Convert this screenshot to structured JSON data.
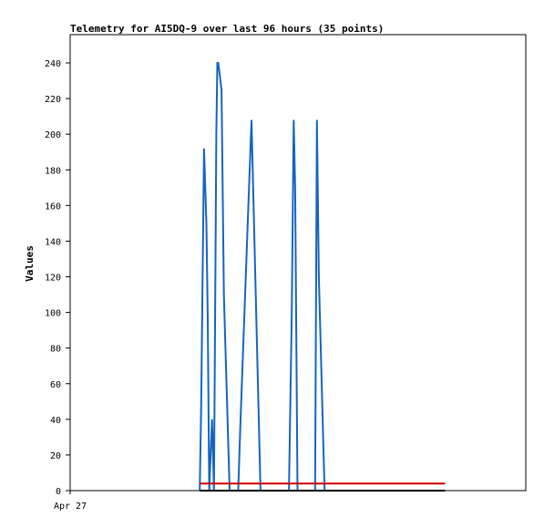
{
  "chart_data": {
    "type": "line",
    "title": "Telemetry for AI5DQ-9 over last 96 hours (35 points)",
    "xlabel": "",
    "ylabel": "Values",
    "x_tick_labels": [
      "Apr 27"
    ],
    "y_ticks": [
      0,
      20,
      40,
      60,
      80,
      100,
      120,
      140,
      160,
      180,
      200,
      220,
      240
    ],
    "ylim": [
      0,
      256
    ],
    "xlim": [
      0,
      96
    ],
    "grid": false,
    "legend": "none",
    "series": [
      {
        "color": "#1565c0",
        "step": true,
        "x": [
          27.3,
          27.6,
          28.2,
          28.7,
          29.0,
          29.3,
          29.9,
          30.3,
          30.8,
          31.0,
          31.2,
          31.9,
          32.4,
          33.6,
          34.0,
          35.0,
          35.4,
          35.9,
          38.2,
          40.1,
          41.0,
          41.5,
          43.9,
          46.1,
          46.7,
          47.1,
          47.4,
          47.9,
          49.2,
          51.2,
          51.6,
          52.0,
          52.4,
          53.6,
          54.1
        ],
        "y": [
          0,
          48,
          192,
          150,
          96,
          0,
          40,
          0,
          200,
          240,
          240,
          225,
          110,
          0,
          0,
          0,
          0,
          40,
          208,
          0,
          0,
          0,
          0,
          0,
          100,
          208,
          170,
          0,
          0,
          0,
          0,
          208,
          120,
          0,
          0
        ]
      },
      {
        "color": "#d00000",
        "x": [
          27.3,
          79.0
        ],
        "y": [
          4,
          4
        ]
      },
      {
        "color": "#000000",
        "x": [
          27.3,
          79.0
        ],
        "y": [
          0,
          0
        ]
      }
    ]
  }
}
